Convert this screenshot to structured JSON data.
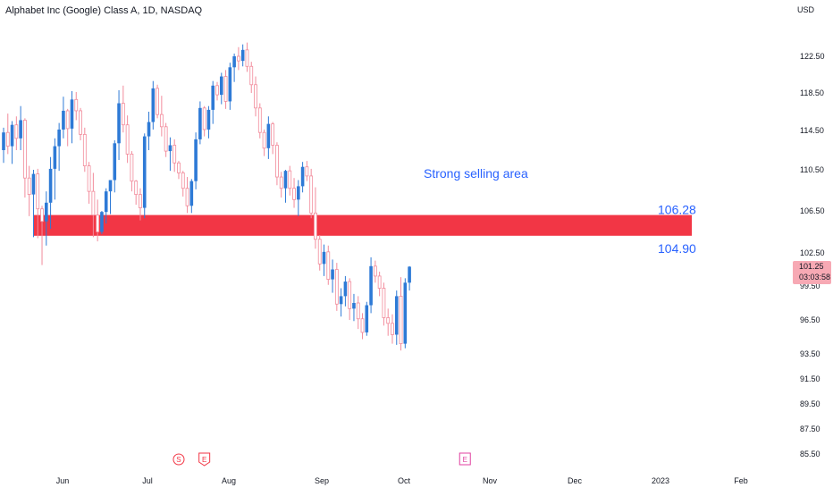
{
  "header": {
    "title": "Alphabet Inc (Google) Class A, 1D, NASDAQ",
    "currency": "USD"
  },
  "colors": {
    "up": "#2e7ad6",
    "down": "#f28b9b",
    "zone": "#f23645",
    "zone_label": "#2962ff",
    "event_s": "#f23645",
    "event_e_earn": "#e040a0"
  },
  "last_price": {
    "value": "101.25",
    "countdown": "03:03:58"
  },
  "annotation": {
    "text": "Strong selling area"
  },
  "zone": {
    "top": 106.28,
    "bottom": 104.9,
    "top_label": "106.28",
    "bottom_label": "104.90"
  },
  "events": [
    {
      "label": "S",
      "date_index": 41,
      "style": "split"
    },
    {
      "label": "E",
      "date_index": 47,
      "style": "earnings-past"
    },
    {
      "label": "E",
      "date_index": 108,
      "style": "earnings-future"
    }
  ],
  "chart_data": {
    "type": "candlestick",
    "title": "Alphabet Inc (Google) Class A, 1D, NASDAQ",
    "y_ticks": [
      "122.50",
      "118.50",
      "114.50",
      "110.50",
      "106.50",
      "102.50",
      "99.50",
      "96.50",
      "93.50",
      "91.50",
      "89.50",
      "87.50",
      "85.50"
    ],
    "x_ticks": [
      "Jun",
      "Jul",
      "Aug",
      "Sep",
      "Oct",
      "Nov",
      "Dec",
      "2023",
      "Feb"
    ],
    "ylim": [
      84.5,
      126
    ],
    "candles": [
      [
        112.5,
        114.8,
        111.2,
        114.3
      ],
      [
        114.3,
        116.3,
        112.1,
        112.9
      ],
      [
        112.9,
        115.5,
        111.1,
        115.1
      ],
      [
        115.1,
        116.0,
        112.5,
        113.7
      ],
      [
        113.7,
        117.1,
        112.5,
        115.6
      ],
      [
        115.6,
        115.8,
        107.8,
        109.7
      ],
      [
        109.7,
        110.9,
        106.0,
        108.1
      ],
      [
        108.1,
        110.5,
        104.0,
        110.1
      ],
      [
        110.1,
        110.6,
        103.9,
        106.7
      ],
      [
        106.7,
        107.0,
        101.4,
        105.5
      ],
      [
        105.5,
        108.4,
        103.2,
        107.3
      ],
      [
        107.3,
        111.8,
        104.8,
        110.6
      ],
      [
        110.6,
        113.7,
        107.6,
        112.9
      ],
      [
        112.9,
        115.3,
        110.4,
        114.6
      ],
      [
        114.6,
        118.1,
        113.7,
        116.6
      ],
      [
        116.6,
        116.8,
        112.9,
        114.7
      ],
      [
        114.7,
        118.7,
        113.2,
        117.8
      ],
      [
        117.8,
        118.6,
        115.6,
        116.6
      ],
      [
        116.6,
        116.9,
        113.5,
        114.1
      ],
      [
        114.1,
        114.8,
        110.3,
        110.9
      ],
      [
        110.9,
        111.3,
        107.2,
        108.4
      ],
      [
        108.4,
        110.2,
        104.0,
        106.1
      ],
      [
        106.1,
        107.6,
        103.6,
        104.5
      ],
      [
        104.5,
        106.5,
        104.3,
        106.4
      ],
      [
        106.4,
        108.7,
        105.3,
        108.4
      ],
      [
        108.4,
        109.5,
        106.2,
        109.5
      ],
      [
        109.5,
        113.5,
        108.3,
        113.2
      ],
      [
        113.2,
        118.8,
        111.5,
        117.4
      ],
      [
        117.4,
        119.3,
        114.3,
        115.1
      ],
      [
        115.1,
        116.1,
        111.2,
        112.1
      ],
      [
        112.1,
        112.4,
        108.4,
        109.4
      ],
      [
        109.4,
        109.5,
        107.1,
        108.1
      ],
      [
        108.1,
        108.7,
        105.6,
        106.8
      ],
      [
        106.8,
        114.2,
        105.8,
        113.9
      ],
      [
        113.9,
        116.5,
        112.5,
        115.4
      ],
      [
        115.4,
        119.8,
        114.6,
        119.0
      ],
      [
        119.0,
        119.4,
        115.8,
        116.2
      ],
      [
        116.2,
        118.2,
        113.9,
        114.9
      ],
      [
        114.9,
        115.3,
        111.8,
        112.4
      ],
      [
        112.4,
        113.8,
        110.4,
        113.0
      ],
      [
        113.0,
        113.6,
        110.3,
        111.2
      ],
      [
        111.2,
        111.4,
        109.6,
        110.2
      ],
      [
        110.2,
        110.4,
        107.9,
        108.7
      ],
      [
        108.7,
        109.8,
        106.3,
        107.0
      ],
      [
        107.0,
        109.6,
        106.3,
        109.4
      ],
      [
        109.4,
        114.3,
        108.6,
        113.6
      ],
      [
        113.6,
        117.6,
        113.1,
        116.9
      ],
      [
        116.9,
        117.1,
        113.9,
        114.6
      ],
      [
        114.6,
        117.1,
        113.7,
        116.7
      ],
      [
        116.7,
        119.8,
        115.2,
        119.3
      ],
      [
        119.3,
        119.7,
        117.7,
        118.3
      ],
      [
        118.3,
        120.7,
        117.3,
        120.3
      ],
      [
        120.3,
        121.0,
        116.8,
        117.6
      ],
      [
        117.6,
        121.8,
        116.7,
        121.3
      ],
      [
        121.3,
        122.8,
        119.7,
        122.5
      ],
      [
        122.5,
        123.5,
        121.0,
        122.0
      ],
      [
        122.0,
        123.8,
        121.4,
        123.2
      ],
      [
        123.2,
        124.0,
        120.8,
        121.4
      ],
      [
        121.4,
        121.9,
        118.5,
        119.4
      ],
      [
        119.4,
        120.3,
        116.0,
        116.9
      ],
      [
        116.9,
        117.4,
        113.7,
        114.3
      ],
      [
        114.3,
        114.6,
        111.9,
        112.7
      ],
      [
        112.7,
        116.0,
        111.6,
        115.2
      ],
      [
        115.2,
        115.4,
        112.1,
        113.0
      ],
      [
        113.0,
        113.3,
        109.0,
        109.8
      ],
      [
        109.8,
        110.3,
        107.8,
        108.7
      ],
      [
        108.7,
        110.5,
        107.3,
        110.4
      ],
      [
        110.4,
        110.9,
        108.0,
        108.7
      ],
      [
        108.7,
        109.7,
        106.8,
        107.6
      ],
      [
        107.6,
        109.5,
        106.0,
        108.9
      ],
      [
        108.9,
        111.3,
        108.3,
        110.8
      ],
      [
        110.8,
        111.4,
        109.4,
        109.9
      ],
      [
        109.9,
        110.6,
        105.8,
        106.3
      ],
      [
        106.3,
        108.8,
        102.9,
        103.8
      ],
      [
        103.8,
        104.2,
        100.9,
        101.5
      ],
      [
        101.5,
        103.3,
        100.4,
        102.6
      ],
      [
        102.6,
        103.2,
        99.6,
        100.1
      ],
      [
        100.1,
        101.9,
        98.9,
        101.0
      ],
      [
        101.0,
        101.6,
        97.3,
        97.9
      ],
      [
        97.9,
        99.3,
        96.8,
        98.6
      ],
      [
        98.6,
        100.4,
        97.7,
        99.9
      ],
      [
        99.9,
        100.2,
        96.5,
        97.5
      ],
      [
        97.5,
        98.8,
        96.4,
        98.0
      ],
      [
        98.0,
        98.6,
        95.7,
        96.6
      ],
      [
        96.6,
        97.1,
        94.8,
        95.4
      ],
      [
        95.4,
        98.1,
        95.1,
        97.8
      ],
      [
        97.8,
        102.1,
        97.1,
        101.3
      ],
      [
        101.3,
        101.8,
        99.8,
        100.4
      ],
      [
        100.4,
        100.8,
        98.6,
        99.3
      ],
      [
        99.3,
        99.8,
        96.0,
        96.7
      ],
      [
        96.7,
        97.5,
        95.1,
        96.2
      ],
      [
        96.2,
        97.0,
        94.4,
        95.2
      ],
      [
        95.2,
        99.1,
        94.3,
        98.6
      ],
      [
        98.6,
        100.3,
        93.8,
        94.4
      ],
      [
        94.4,
        100.2,
        94.0,
        99.8
      ],
      [
        99.8,
        101.3,
        99.1,
        101.25
      ]
    ]
  }
}
